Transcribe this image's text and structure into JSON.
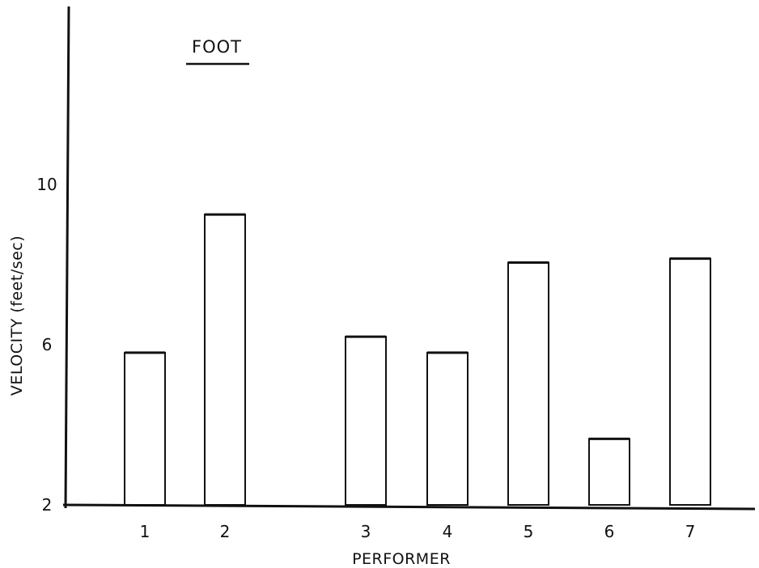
{
  "chart_data": {
    "type": "bar",
    "title": "FOOT",
    "xlabel": "PERFORMER",
    "ylabel": "VELOCITY (feet/sec)",
    "categories": [
      "1",
      "2",
      "3",
      "4",
      "5",
      "6",
      "7"
    ],
    "values": [
      5.8,
      9.25,
      6.2,
      5.8,
      8.05,
      3.65,
      8.15
    ],
    "ylim": [
      2,
      14
    ],
    "yticks": [
      2,
      6,
      10
    ],
    "grid": false,
    "legend": "none",
    "colors": {
      "bar_fill": "#ffffff",
      "bar_stroke": "#111111",
      "axis": "#111111",
      "text": "#111111"
    }
  }
}
